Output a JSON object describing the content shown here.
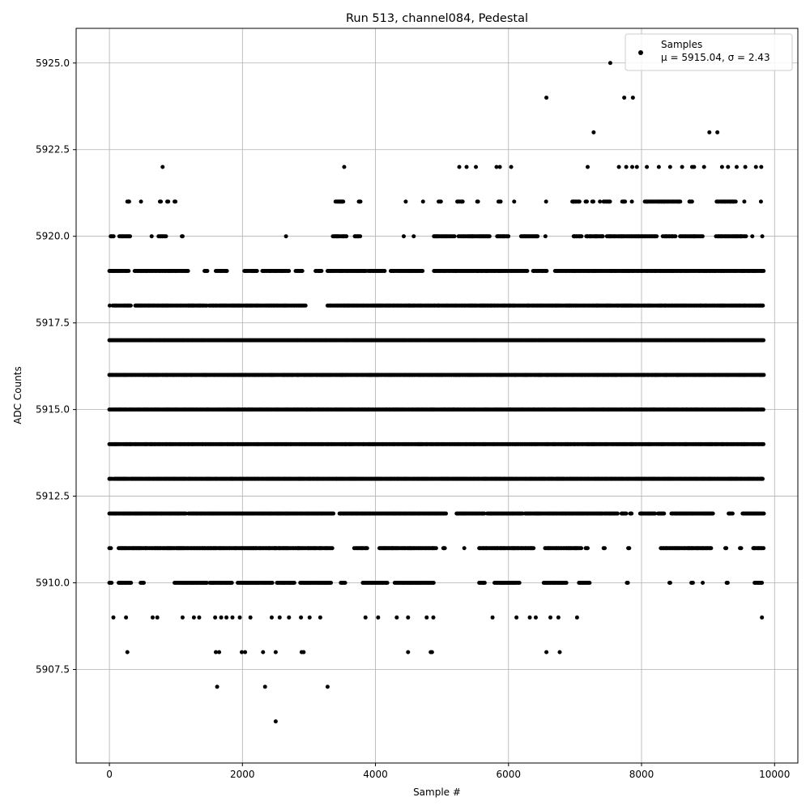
{
  "chart_data": {
    "type": "scatter",
    "title": "Run 513, channel084, Pedestal",
    "xlabel": "Sample #",
    "ylabel": "ADC Counts",
    "xlim": [
      -500,
      10350
    ],
    "ylim": [
      5904.8,
      5926.0
    ],
    "xticks": [
      0,
      2000,
      4000,
      6000,
      8000,
      10000
    ],
    "xtick_labels": [
      "0",
      "2000",
      "4000",
      "6000",
      "8000",
      "10000"
    ],
    "yticks": [
      5907.5,
      5910.0,
      5912.5,
      5915.0,
      5917.5,
      5920.0,
      5922.5,
      5925.0
    ],
    "ytick_labels": [
      "5907.5",
      "5910.0",
      "5912.5",
      "5915.0",
      "5917.5",
      "5920.0",
      "5922.5",
      "5925.0"
    ],
    "grid": true,
    "legend_position": "top-right",
    "marker_color": "#000000",
    "series": [
      {
        "name": "Samples",
        "stats_label": "μ = 5915.04, σ = 2.43",
        "mean": 5915.04,
        "std": 2.43,
        "x_range": [
          0,
          9840
        ],
        "points": [
          {
            "x": 2500,
            "y": 5906
          },
          {
            "x": 1620,
            "y": 5907
          },
          {
            "x": 2340,
            "y": 5907
          },
          {
            "x": 3280,
            "y": 5907
          },
          {
            "x": 270,
            "y": 5908
          },
          {
            "x": 1600,
            "y": 5908
          },
          {
            "x": 1650,
            "y": 5908
          },
          {
            "x": 1990,
            "y": 5908
          },
          {
            "x": 2040,
            "y": 5908
          },
          {
            "x": 2310,
            "y": 5908
          },
          {
            "x": 2500,
            "y": 5908
          },
          {
            "x": 2890,
            "y": 5908
          },
          {
            "x": 2920,
            "y": 5908
          },
          {
            "x": 4490,
            "y": 5908
          },
          {
            "x": 4830,
            "y": 5908
          },
          {
            "x": 4850,
            "y": 5908
          },
          {
            "x": 6570,
            "y": 5908
          },
          {
            "x": 6770,
            "y": 5908
          },
          {
            "x": 60,
            "y": 5909
          },
          {
            "x": 250,
            "y": 5909
          },
          {
            "x": 650,
            "y": 5909
          },
          {
            "x": 720,
            "y": 5909
          },
          {
            "x": 1100,
            "y": 5909
          },
          {
            "x": 1270,
            "y": 5909
          },
          {
            "x": 1350,
            "y": 5909
          },
          {
            "x": 1590,
            "y": 5909
          },
          {
            "x": 1680,
            "y": 5909
          },
          {
            "x": 1760,
            "y": 5909
          },
          {
            "x": 1850,
            "y": 5909
          },
          {
            "x": 1960,
            "y": 5909
          },
          {
            "x": 2120,
            "y": 5909
          },
          {
            "x": 2440,
            "y": 5909
          },
          {
            "x": 2560,
            "y": 5909
          },
          {
            "x": 2700,
            "y": 5909
          },
          {
            "x": 2880,
            "y": 5909
          },
          {
            "x": 3010,
            "y": 5909
          },
          {
            "x": 3170,
            "y": 5909
          },
          {
            "x": 3850,
            "y": 5909
          },
          {
            "x": 4040,
            "y": 5909
          },
          {
            "x": 4320,
            "y": 5909
          },
          {
            "x": 4490,
            "y": 5909
          },
          {
            "x": 4770,
            "y": 5909
          },
          {
            "x": 4870,
            "y": 5909
          },
          {
            "x": 5760,
            "y": 5909
          },
          {
            "x": 6120,
            "y": 5909
          },
          {
            "x": 6320,
            "y": 5909
          },
          {
            "x": 6410,
            "y": 5909
          },
          {
            "x": 6630,
            "y": 5909
          },
          {
            "x": 6750,
            "y": 5909
          },
          {
            "x": 7030,
            "y": 5909
          },
          {
            "x": 9810,
            "y": 5909
          },
          {
            "x": 800,
            "y": 5922
          },
          {
            "x": 3530,
            "y": 5922
          },
          {
            "x": 5260,
            "y": 5922
          },
          {
            "x": 5370,
            "y": 5922
          },
          {
            "x": 5510,
            "y": 5922
          },
          {
            "x": 5820,
            "y": 5922
          },
          {
            "x": 5870,
            "y": 5922
          },
          {
            "x": 6040,
            "y": 5922
          },
          {
            "x": 7190,
            "y": 5922
          },
          {
            "x": 7660,
            "y": 5922
          },
          {
            "x": 7770,
            "y": 5922
          },
          {
            "x": 7860,
            "y": 5922
          },
          {
            "x": 7930,
            "y": 5922
          },
          {
            "x": 8080,
            "y": 5922
          },
          {
            "x": 8260,
            "y": 5922
          },
          {
            "x": 8430,
            "y": 5922
          },
          {
            "x": 8610,
            "y": 5922
          },
          {
            "x": 8760,
            "y": 5922
          },
          {
            "x": 8790,
            "y": 5922
          },
          {
            "x": 8940,
            "y": 5922
          },
          {
            "x": 9210,
            "y": 5922
          },
          {
            "x": 9300,
            "y": 5922
          },
          {
            "x": 9430,
            "y": 5922
          },
          {
            "x": 9560,
            "y": 5922
          },
          {
            "x": 9720,
            "y": 5922
          },
          {
            "x": 9800,
            "y": 5922
          },
          {
            "x": 7280,
            "y": 5923
          },
          {
            "x": 9020,
            "y": 5923
          },
          {
            "x": 9140,
            "y": 5923
          },
          {
            "x": 6570,
            "y": 5924
          },
          {
            "x": 7740,
            "y": 5924
          },
          {
            "x": 7870,
            "y": 5924
          },
          {
            "x": 7530,
            "y": 5925
          }
        ],
        "bands": [
          {
            "y": 5910,
            "ranges": [
              [
                0,
                40
              ],
              [
                140,
                330
              ],
              [
                470,
                520
              ],
              [
                980,
                1480
              ],
              [
                1510,
                1860
              ],
              [
                1930,
                2460
              ],
              [
                2520,
                2780
              ],
              [
                2870,
                3350
              ],
              [
                3480,
                3560
              ],
              [
                3810,
                4190
              ],
              [
                4290,
                4880
              ],
              [
                5560,
                5650
              ],
              [
                5790,
                6180
              ],
              [
                6530,
                6880
              ],
              [
                7060,
                7230
              ],
              [
                7780,
                7800
              ],
              [
                8420,
                8440
              ],
              [
                8750,
                8780
              ],
              [
                8920,
                8940
              ],
              [
                9280,
                9310
              ],
              [
                9700,
                9820
              ]
            ]
          },
          {
            "y": 5911,
            "ranges": [
              [
                0,
                40
              ],
              [
                140,
                1620
              ],
              [
                1630,
                3360
              ],
              [
                3680,
                3880
              ],
              [
                4060,
                4920
              ],
              [
                5020,
                5060
              ],
              [
                5330,
                5340
              ],
              [
                5560,
                6390
              ],
              [
                6550,
                7100
              ],
              [
                7160,
                7210
              ],
              [
                7430,
                7450
              ],
              [
                7800,
                7820
              ],
              [
                8290,
                9050
              ],
              [
                9260,
                9280
              ],
              [
                9480,
                9500
              ],
              [
                9680,
                9840
              ]
            ]
          },
          {
            "y": 5912,
            "ranges": [
              [
                0,
                1170
              ],
              [
                1190,
                3370
              ],
              [
                3460,
                5060
              ],
              [
                5220,
                5640
              ],
              [
                5680,
                6220
              ],
              [
                6250,
                7420
              ],
              [
                7440,
                7650
              ],
              [
                7700,
                7780
              ],
              [
                7830,
                7860
              ],
              [
                7980,
                8210
              ],
              [
                8250,
                8350
              ],
              [
                8450,
                9090
              ],
              [
                9310,
                9380
              ],
              [
                9520,
                9840
              ]
            ]
          },
          {
            "y": 5913,
            "ranges": [
              [
                0,
                50
              ],
              [
                70,
                9840
              ]
            ]
          },
          {
            "y": 5914,
            "ranges": [
              [
                0,
                9840
              ]
            ]
          },
          {
            "y": 5915,
            "ranges": [
              [
                0,
                9840
              ]
            ]
          },
          {
            "y": 5916,
            "ranges": [
              [
                0,
                9840
              ]
            ]
          },
          {
            "y": 5917,
            "ranges": [
              [
                0,
                9840
              ]
            ]
          },
          {
            "y": 5918,
            "ranges": [
              [
                0,
                10
              ],
              [
                50,
                330
              ],
              [
                390,
                1470
              ],
              [
                1500,
                2950
              ],
              [
                3280,
                9840
              ]
            ]
          },
          {
            "y": 5919,
            "ranges": [
              [
                0,
                300
              ],
              [
                380,
                1200
              ],
              [
                1430,
                1490
              ],
              [
                1600,
                1770
              ],
              [
                2030,
                2220
              ],
              [
                2300,
                2700
              ],
              [
                2800,
                2920
              ],
              [
                3100,
                3190
              ],
              [
                3280,
                3860
              ],
              [
                3890,
                4150
              ],
              [
                4230,
                4720
              ],
              [
                4880,
                6290
              ],
              [
                6370,
                6590
              ],
              [
                6700,
                9840
              ]
            ]
          },
          {
            "y": 5920,
            "ranges": [
              [
                20,
                70
              ],
              [
                150,
                320
              ],
              [
                630,
                640
              ],
              [
                740,
                860
              ],
              [
                1090,
                1120
              ],
              [
                2650,
                2660
              ],
              [
                3360,
                3570
              ],
              [
                3690,
                3770
              ],
              [
                4420,
                4430
              ],
              [
                4570,
                4580
              ],
              [
                4880,
                5200
              ],
              [
                5250,
                5720
              ],
              [
                5830,
                6010
              ],
              [
                6190,
                6440
              ],
              [
                6550,
                6560
              ],
              [
                6980,
                7100
              ],
              [
                7170,
                7420
              ],
              [
                7480,
                8230
              ],
              [
                8320,
                8510
              ],
              [
                8580,
                8920
              ],
              [
                9120,
                9590
              ],
              [
                9660,
                9670
              ],
              [
                9810,
                9820
              ]
            ]
          },
          {
            "y": 5921,
            "ranges": [
              [
                270,
                300
              ],
              [
                470,
                480
              ],
              [
                760,
                780
              ],
              [
                870,
                890
              ],
              [
                980,
                1000
              ],
              [
                3400,
                3530
              ],
              [
                3750,
                3780
              ],
              [
                4450,
                4460
              ],
              [
                4710,
                4720
              ],
              [
                4950,
                5000
              ],
              [
                5230,
                5320
              ],
              [
                5530,
                5550
              ],
              [
                5850,
                5890
              ],
              [
                6080,
                6090
              ],
              [
                6560,
                6570
              ],
              [
                6960,
                7070
              ],
              [
                7160,
                7190
              ],
              [
                7260,
                7290
              ],
              [
                7370,
                7380
              ],
              [
                7430,
                7530
              ],
              [
                7710,
                7760
              ],
              [
                7850,
                7860
              ],
              [
                8050,
                8590
              ],
              [
                8720,
                8760
              ],
              [
                9130,
                9420
              ],
              [
                9540,
                9550
              ],
              [
                9790,
                9800
              ]
            ]
          }
        ]
      }
    ]
  }
}
